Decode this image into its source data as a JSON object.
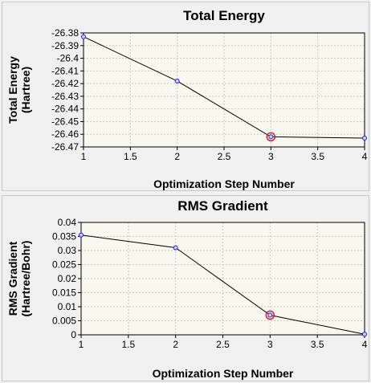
{
  "chart_data": [
    {
      "type": "line",
      "title": "Total Energy",
      "xlabel": "Optimization Step Number",
      "ylabel_lines": [
        "Total Energy",
        "(Hartree)"
      ],
      "x": [
        1,
        2,
        3,
        4
      ],
      "values": [
        -26.383,
        -26.418,
        -26.462,
        -26.463
      ],
      "xlim": [
        1,
        4
      ],
      "ylim": [
        -26.47,
        -26.38
      ],
      "xticks": [
        1,
        1.5,
        2,
        2.5,
        3,
        3.5,
        4
      ],
      "xtick_labels": [
        "1",
        "1.5",
        "2",
        "2.5",
        "3",
        "3.5",
        "4"
      ],
      "yticks": [
        -26.38,
        -26.39,
        -26.4,
        -26.41,
        -26.42,
        -26.43,
        -26.44,
        -26.45,
        -26.46,
        -26.47
      ],
      "ytick_labels": [
        "-26.38",
        "-26.39",
        "-26.4",
        "-26.41",
        "-26.42",
        "-26.43",
        "-26.44",
        "-26.45",
        "-26.46",
        "-26.47"
      ],
      "grid": true,
      "highlight_x": 3,
      "colors": {
        "line": "#000000",
        "marker": "#1a1aff",
        "highlight": "#e02020",
        "plot_bg": "#f8f8ee"
      }
    },
    {
      "type": "line",
      "title": "RMS Gradient",
      "xlabel": "Optimization Step Number",
      "ylabel_lines": [
        "RMS Gradient",
        "(Hartree/Bohr)"
      ],
      "x": [
        1,
        2,
        3,
        4
      ],
      "values": [
        0.0355,
        0.031,
        0.007,
        0.0002
      ],
      "xlim": [
        1,
        4
      ],
      "ylim": [
        0,
        0.04
      ],
      "xticks": [
        1,
        1.5,
        2,
        2.5,
        3,
        3.5,
        4
      ],
      "xtick_labels": [
        "1",
        "1.5",
        "2",
        "2.5",
        "3",
        "3.5",
        "4"
      ],
      "yticks": [
        0,
        0.005,
        0.01,
        0.015,
        0.02,
        0.025,
        0.03,
        0.035,
        0.04
      ],
      "ytick_labels": [
        "0",
        "0.005",
        "0.01",
        "0.015",
        "0.02",
        "0.025",
        "0.03",
        "0.035",
        "0.04"
      ],
      "grid": true,
      "highlight_x": 3,
      "colors": {
        "line": "#000000",
        "marker": "#1a1aff",
        "highlight": "#e02020",
        "plot_bg": "#f8f8ee"
      }
    }
  ]
}
